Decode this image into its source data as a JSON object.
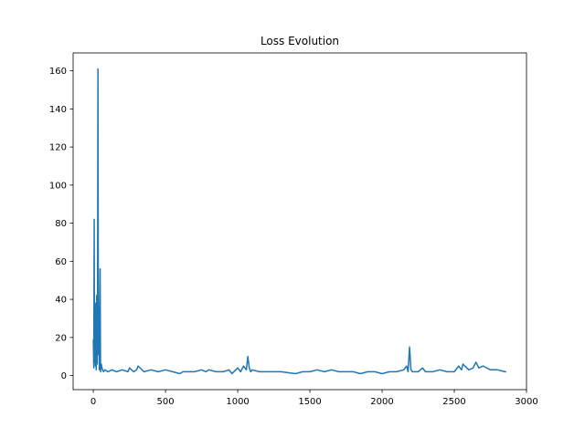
{
  "chart_data": {
    "type": "line",
    "title": "Loss Evolution",
    "xlabel": "",
    "ylabel": "",
    "xlim": [
      -140,
      3000
    ],
    "ylim": [
      -7.4,
      169.4
    ],
    "x_ticks": [
      0,
      500,
      1000,
      1500,
      2000,
      2500,
      3000
    ],
    "y_ticks": [
      0,
      20,
      40,
      60,
      80,
      100,
      120,
      140,
      160
    ],
    "grid": false,
    "legend": "none",
    "series": [
      {
        "color": "#1f77b4",
        "x": [
          0,
          3,
          6,
          8,
          11,
          14,
          17,
          20,
          23,
          26,
          29,
          32,
          35,
          38,
          41,
          44,
          47,
          50,
          55,
          60,
          70,
          80,
          100,
          130,
          160,
          200,
          240,
          250,
          280,
          300,
          310,
          350,
          400,
          450,
          500,
          550,
          600,
          620,
          700,
          750,
          780,
          800,
          850,
          900,
          940,
          960,
          1000,
          1020,
          1040,
          1060,
          1070,
          1080,
          1090,
          1100,
          1150,
          1200,
          1300,
          1400,
          1450,
          1500,
          1550,
          1600,
          1650,
          1700,
          1750,
          1800,
          1850,
          1900,
          1950,
          2000,
          2050,
          2100,
          2150,
          2170,
          2180,
          2190,
          2200,
          2210,
          2250,
          2280,
          2300,
          2350,
          2400,
          2450,
          2500,
          2530,
          2550,
          2560,
          2600,
          2630,
          2650,
          2670,
          2700,
          2750,
          2800,
          2850,
          2860
        ],
        "y": [
          19,
          4,
          82,
          7,
          31,
          5,
          38,
          3,
          42,
          6,
          35,
          161,
          11,
          30,
          3,
          33,
          56,
          2,
          6,
          4,
          2,
          3,
          2,
          3,
          2,
          3,
          2,
          4,
          2,
          3,
          5,
          2,
          3,
          2,
          3,
          2,
          1,
          2,
          2,
          3,
          2,
          3,
          2,
          2,
          3,
          1,
          4,
          2,
          5,
          3,
          10,
          4,
          2,
          3,
          2,
          2,
          2,
          1,
          2,
          2,
          3,
          2,
          3,
          2,
          2,
          2,
          1,
          2,
          2,
          1,
          2,
          2,
          3,
          5,
          2,
          15,
          3,
          2,
          2,
          4,
          2,
          2,
          3,
          2,
          2,
          5,
          3,
          6,
          3,
          4,
          7,
          4,
          5,
          3,
          3,
          2,
          2
        ]
      }
    ]
  }
}
